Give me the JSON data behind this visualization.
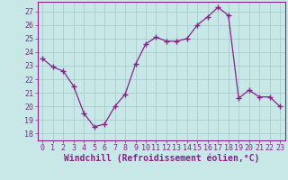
{
  "x": [
    0,
    1,
    2,
    3,
    4,
    5,
    6,
    7,
    8,
    9,
    10,
    11,
    12,
    13,
    14,
    15,
    16,
    17,
    18,
    19,
    20,
    21,
    22,
    23
  ],
  "y": [
    23.5,
    22.9,
    22.6,
    21.5,
    19.5,
    18.5,
    18.7,
    20.0,
    20.9,
    23.1,
    24.6,
    25.1,
    24.8,
    24.8,
    25.0,
    26.0,
    26.6,
    27.3,
    26.7,
    20.6,
    21.2,
    20.7,
    20.7,
    20.0
  ],
  "line_color": "#882288",
  "marker": "+",
  "marker_size": 4,
  "bg_color": "#C8E8E8",
  "grid_color": "#AACCCC",
  "xlabel": "Windchill (Refroidissement éolien,°C)",
  "ylim": [
    17.5,
    27.7
  ],
  "xlim": [
    -0.5,
    23.5
  ],
  "yticks": [
    18,
    19,
    20,
    21,
    22,
    23,
    24,
    25,
    26,
    27
  ],
  "xticks": [
    0,
    1,
    2,
    3,
    4,
    5,
    6,
    7,
    8,
    9,
    10,
    11,
    12,
    13,
    14,
    15,
    16,
    17,
    18,
    19,
    20,
    21,
    22,
    23
  ],
  "tick_fontsize": 6,
  "label_fontsize": 7
}
